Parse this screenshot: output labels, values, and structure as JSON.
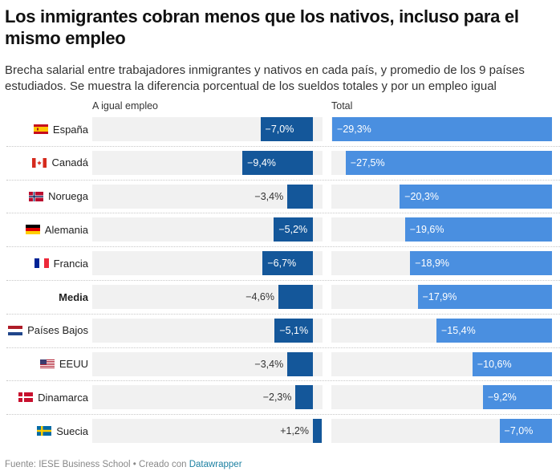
{
  "title": "Los inmigrantes cobran menos que los nativos, incluso para el mismo empleo",
  "subtitle": "Brecha salarial entre trabajadores inmigrantes y nativos en cada país, y promedio de los 9 países estudiados. Se muestra la diferencia porcentual de los sueldos totales y por un empleo igual",
  "footer": {
    "source": "Fuente: IESE Business School • Creado con ",
    "link": "Datawrapper"
  },
  "colors": {
    "equal_job": "#14579a",
    "total": "#4a8fe0",
    "panel_bg": "#f1f1f1"
  },
  "chart_data": {
    "type": "bar",
    "orientation": "horizontal",
    "title": "Los inmigrantes cobran menos que los nativos, incluso para el mismo empleo",
    "categories": [
      "España",
      "Canadá",
      "Noruega",
      "Alemania",
      "Francia",
      "Media",
      "Países Bajos",
      "EEUU",
      "Dinamarca",
      "Suecia"
    ],
    "flags": [
      "es-flag",
      "ca-flag",
      "no-flag",
      "de-flag",
      "fr-flag",
      "",
      "nl-flag",
      "us-flag",
      "dk-flag",
      "se-flag"
    ],
    "bold_categories": [
      "Media"
    ],
    "series": [
      {
        "name": "A igual empleo",
        "values": [
          -7.0,
          -9.4,
          -3.4,
          -5.2,
          -6.7,
          -4.6,
          -5.1,
          -3.4,
          -2.3,
          1.2
        ],
        "labels": [
          "−7,0%",
          "−9,4%",
          "−3,4%",
          "−5,2%",
          "−6,7%",
          "−4,6%",
          "−5,1%",
          "−3,4%",
          "−2,3%",
          "+1,2%"
        ]
      },
      {
        "name": "Total",
        "values": [
          -29.3,
          -27.5,
          -20.3,
          -19.6,
          -18.9,
          -17.9,
          -15.4,
          -10.6,
          -9.2,
          -7.0
        ],
        "labels": [
          "−29,3%",
          "−27,5%",
          "−20,3%",
          "−19,6%",
          "−18,9%",
          "−17,9%",
          "−15,4%",
          "−10,6%",
          "−9,2%",
          "−7,0%"
        ]
      }
    ],
    "xlim": [
      -29.3,
      1.2
    ],
    "grid": false,
    "legend": "none"
  }
}
